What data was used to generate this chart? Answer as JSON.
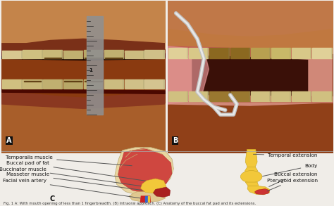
{
  "background_color": "#f0ede8",
  "panel_A_bg": "#c8956a",
  "panel_B_bg": "#b87040",
  "caption_text": "Fig. 1 A: With mouth opening of less than 1 fingerbreadth. (B) Intraoral approach. (C) Anatomy of the buccal fat pad and its extensions.",
  "caption_fontsize": 3.8,
  "skull_labels_left": [
    [
      "Temporalis muscle",
      1.55,
      0.52
    ],
    [
      "Buccal pad of fat",
      1.45,
      0.82
    ],
    [
      "Buccinator muscle",
      1.35,
      1.12
    ],
    [
      "Masseter muscle",
      1.45,
      1.4
    ],
    [
      "Facial vein artery",
      1.35,
      1.72
    ]
  ],
  "skull_labels_right": [
    [
      "Temporal extension",
      9.55,
      0.42
    ],
    [
      "Body",
      9.55,
      0.95
    ],
    [
      "Buccal extension",
      9.55,
      1.38
    ],
    [
      "Pterygoid extension",
      9.55,
      1.7
    ]
  ],
  "label_fontsize": 5.2
}
